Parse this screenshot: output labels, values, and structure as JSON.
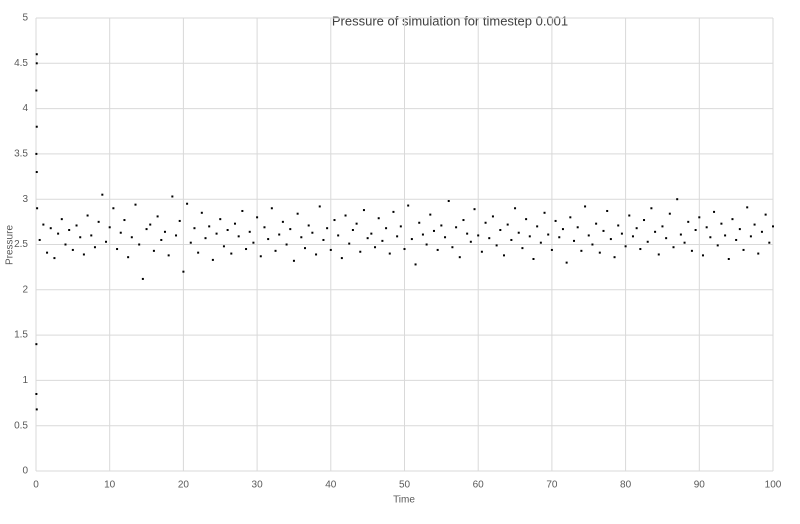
{
  "chart_data": {
    "type": "scatter",
    "title": "Pressure of simulation for timestep 0.001",
    "x_label": "Time",
    "y_label": "Pressure",
    "xlim": [
      0,
      100
    ],
    "ylim": [
      0,
      5
    ],
    "xticks": [
      0,
      10,
      20,
      30,
      40,
      50,
      60,
      70,
      80,
      90,
      100
    ],
    "yticks": [
      0,
      0.5,
      1,
      1.5,
      2,
      2.5,
      3,
      3.5,
      4,
      4.5,
      5
    ],
    "grid": true,
    "series": [
      {
        "color": "#000000",
        "x": [
          0.1,
          0.1,
          0.05,
          0.1,
          0.05,
          0.1,
          0.15,
          0.05,
          0.05,
          0.1,
          0.5,
          1,
          1.5,
          2,
          2.5,
          3,
          3.5,
          4,
          4.5,
          5,
          5.5,
          6,
          6.5,
          7,
          7.5,
          8,
          8.5,
          9,
          9.5,
          10,
          10.5,
          11,
          11.5,
          12,
          12.5,
          13,
          13.5,
          14,
          14.5,
          15,
          15.5,
          16,
          16.5,
          17,
          17.5,
          18,
          18.5,
          19,
          19.5,
          20,
          20.5,
          21,
          21.5,
          22,
          22.5,
          23,
          23.5,
          24,
          24.5,
          25,
          25.5,
          26,
          26.5,
          27,
          27.5,
          28,
          28.5,
          29,
          29.5,
          30,
          30.5,
          31,
          31.5,
          32,
          32.5,
          33,
          33.5,
          34,
          34.5,
          35,
          35.5,
          36,
          36.5,
          37,
          37.5,
          38,
          38.5,
          39,
          39.5,
          40,
          40.5,
          41,
          41.5,
          42,
          42.5,
          43,
          43.5,
          44,
          44.5,
          45,
          45.5,
          46,
          46.5,
          47,
          47.5,
          48,
          48.5,
          49,
          49.5,
          50,
          50.5,
          51,
          51.5,
          52,
          52.5,
          53,
          53.5,
          54,
          54.5,
          55,
          55.5,
          56,
          56.5,
          57,
          57.5,
          58,
          58.5,
          59,
          59.5,
          60,
          60.5,
          61,
          61.5,
          62,
          62.5,
          63,
          63.5,
          64,
          64.5,
          65,
          65.5,
          66,
          66.5,
          67,
          67.5,
          68,
          68.5,
          69,
          69.5,
          70,
          70.5,
          71,
          71.5,
          72,
          72.5,
          73,
          73.5,
          74,
          74.5,
          75,
          75.5,
          76,
          76.5,
          77,
          77.5,
          78,
          78.5,
          79,
          79.5,
          80,
          80.5,
          81,
          81.5,
          82,
          82.5,
          83,
          83.5,
          84,
          84.5,
          85,
          85.5,
          86,
          86.5,
          87,
          87.5,
          88,
          88.5,
          89,
          89.5,
          90,
          90.5,
          91,
          91.5,
          92,
          92.5,
          93,
          93.5,
          94,
          94.5,
          95,
          95.5,
          96,
          96.5,
          97,
          97.5,
          98,
          98.5,
          99,
          99.5,
          100
        ],
        "values": [
          4.6,
          4.5,
          4.2,
          3.8,
          3.5,
          3.3,
          2.9,
          1.4,
          0.85,
          0.68,
          2.55,
          2.72,
          2.41,
          2.68,
          2.35,
          2.62,
          2.78,
          2.5,
          2.66,
          2.44,
          2.71,
          2.58,
          2.39,
          2.82,
          2.6,
          2.47,
          2.75,
          3.05,
          2.53,
          2.69,
          2.9,
          2.45,
          2.63,
          2.77,
          2.36,
          2.58,
          2.94,
          2.5,
          2.12,
          2.67,
          2.72,
          2.43,
          2.81,
          2.55,
          2.64,
          2.38,
          3.03,
          2.6,
          2.76,
          2.2,
          2.95,
          2.52,
          2.68,
          2.41,
          2.85,
          2.57,
          2.7,
          2.33,
          2.62,
          2.78,
          2.48,
          2.66,
          2.4,
          2.73,
          2.59,
          2.87,
          2.45,
          2.64,
          2.52,
          2.8,
          2.37,
          2.69,
          2.56,
          2.9,
          2.43,
          2.61,
          2.75,
          2.5,
          2.67,
          2.32,
          2.84,
          2.58,
          2.46,
          2.71,
          2.63,
          2.39,
          2.92,
          2.55,
          2.68,
          2.44,
          2.77,
          2.6,
          2.35,
          2.82,
          2.51,
          2.66,
          2.73,
          2.42,
          2.88,
          2.57,
          2.62,
          2.47,
          2.79,
          2.54,
          2.68,
          2.4,
          2.86,
          2.59,
          2.7,
          2.45,
          2.93,
          2.56,
          2.28,
          2.74,
          2.61,
          2.5,
          2.83,
          2.65,
          2.44,
          2.71,
          2.58,
          2.98,
          2.47,
          2.69,
          2.36,
          2.77,
          2.62,
          2.53,
          2.89,
          2.6,
          2.42,
          2.74,
          2.57,
          2.81,
          2.49,
          2.66,
          2.38,
          2.72,
          2.55,
          2.9,
          2.63,
          2.46,
          2.78,
          2.59,
          2.34,
          2.7,
          2.52,
          2.85,
          2.61,
          2.44,
          2.76,
          2.58,
          2.67,
          2.3,
          2.8,
          2.54,
          2.69,
          2.43,
          2.92,
          2.6,
          2.5,
          2.73,
          2.41,
          2.65,
          2.87,
          2.56,
          2.36,
          2.71,
          2.62,
          2.48,
          2.82,
          2.59,
          2.68,
          2.45,
          2.77,
          2.53,
          2.9,
          2.64,
          2.39,
          2.7,
          2.57,
          2.84,
          2.47,
          3.0,
          2.61,
          2.52,
          2.75,
          2.43,
          2.66,
          2.8,
          2.38,
          2.69,
          2.58,
          2.86,
          2.49,
          2.73,
          2.6,
          2.34,
          2.78,
          2.55,
          2.67,
          2.44,
          2.91,
          2.59,
          2.72,
          2.4,
          2.64,
          2.83,
          2.52,
          2.7
        ]
      }
    ]
  }
}
